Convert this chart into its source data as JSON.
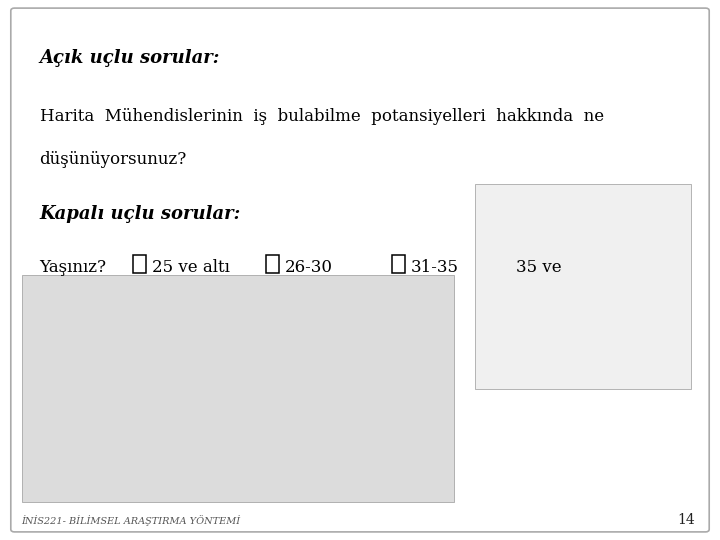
{
  "background_color": "#ffffff",
  "border_color": "#aaaaaa",
  "title1": "Açık uçlu sorular:",
  "body_text_line1": "Harita  Mühendislerinin  iş  bulabilme  potansiyelleri  hakkında  ne",
  "body_text_line2": "düşünüyorsunuz?",
  "title2": "Kapalı uçlu sorular:",
  "row_label": "Yaşınız?",
  "options": [
    "25 ve altı",
    "26-30",
    "31-35",
    "35 ve"
  ],
  "footer_text": "İNİS221- BİLİMSEL ARAŞTIRMA YÖNTEMİ",
  "page_number": "14",
  "image1_color": "#dcdcdc",
  "image2_color": "#f0f0f0",
  "font_family": "DejaVu Serif"
}
